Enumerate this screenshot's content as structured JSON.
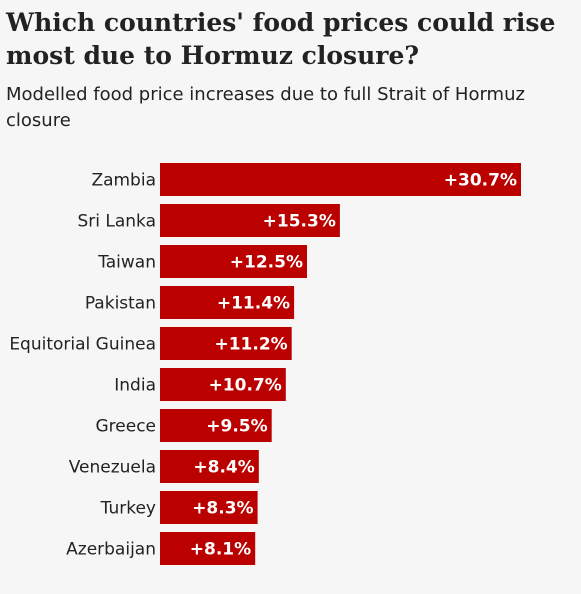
{
  "header": {
    "title": "Which countries' food prices could rise most due to Hormuz closure?",
    "subtitle": "Modelled food price increases due to full Strait of Hormuz closure"
  },
  "colors": {
    "bar": "#bb0000",
    "background": "#f6f6f6",
    "text": "#222222",
    "value_text": "#ffffff"
  },
  "chart_data": {
    "type": "bar",
    "orientation": "horizontal",
    "title": "Which countries' food prices could rise most due to Hormuz closure?",
    "subtitle": "Modelled food price increases due to full Strait of Hormuz closure",
    "categories": [
      "Zambia",
      "Sri Lanka",
      "Taiwan",
      "Pakistan",
      "Equitorial Guinea",
      "India",
      "Greece",
      "Venezuela",
      "Turkey",
      "Azerbaijan"
    ],
    "values": [
      30.7,
      15.3,
      12.5,
      11.4,
      11.2,
      10.7,
      9.5,
      8.4,
      8.3,
      8.1
    ],
    "value_labels": [
      "+30.7%",
      "+15.3%",
      "+12.5%",
      "+11.4%",
      "+11.2%",
      "+10.7%",
      "+9.5%",
      "+8.4%",
      "+8.3%",
      "+8.1%"
    ],
    "xlim": [
      0,
      30.7
    ],
    "grid": false,
    "legend": "none"
  }
}
